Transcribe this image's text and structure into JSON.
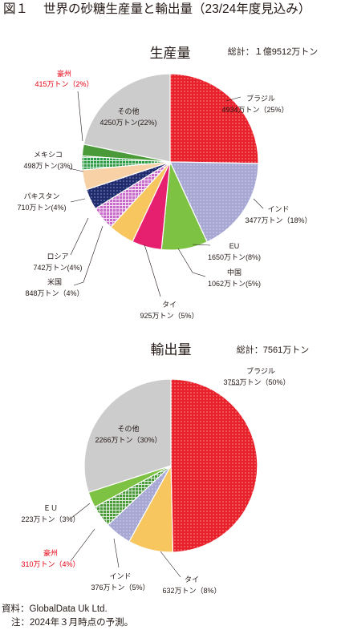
{
  "figure": {
    "number": "図１",
    "title": "世界の砂糖生産量と輸出量（23/24年度見込み）"
  },
  "chart_data": [
    {
      "type": "pie",
      "title": "生産量",
      "total": "総計：１億9512万トン",
      "unit": "万トン",
      "slices": [
        {
          "name": "ブラジル",
          "value": 4934,
          "percent": 25,
          "value_label": "4934万トン（25%）",
          "color": "#e8202a",
          "pattern": "dots-white"
        },
        {
          "name": "インド",
          "value": 3477,
          "percent": 18,
          "value_label": "3477万トン（18%）",
          "color": "#a7a7d4",
          "pattern": "dots-white"
        },
        {
          "name": "EU",
          "value": 1650,
          "percent": 8,
          "value_label": "1650万トン(8%)",
          "color": "#7dc242",
          "pattern": "none"
        },
        {
          "name": "中国",
          "value": 1062,
          "percent": 5,
          "value_label": "1062万トン(5%)",
          "color": "#e6206e",
          "pattern": "none"
        },
        {
          "name": "タイ",
          "value": 925,
          "percent": 5,
          "value_label": "925万トン（5%）",
          "color": "#f7c65f",
          "pattern": "none"
        },
        {
          "name": "米国",
          "value": 848,
          "percent": 4,
          "value_label": "848万トン（4%）",
          "color": "#c86ac9",
          "pattern": "grid-white"
        },
        {
          "name": "ロシア",
          "value": 742,
          "percent": 4,
          "value_label": "742万トン(4%)",
          "color": "#1e2b6e",
          "pattern": "dots-white"
        },
        {
          "name": "パキスタン",
          "value": 710,
          "percent": 4,
          "value_label": "710万トン(4%)",
          "color": "#f8d1a6",
          "pattern": "none"
        },
        {
          "name": "メキシコ",
          "value": 498,
          "percent": 3,
          "value_label": "498万トン(3%)",
          "color": "#2e9b46",
          "pattern": "grid-white"
        },
        {
          "name": "豪州",
          "value": 415,
          "percent": 2,
          "value_label": "415万トン（2%）",
          "color": "#4a9a3a",
          "pattern": "none",
          "highlight": true
        },
        {
          "name": "その他",
          "value": 4250,
          "percent": 22,
          "value_label": "4250万トン(22%)",
          "color": "#cccccc",
          "pattern": "none"
        }
      ]
    },
    {
      "type": "pie",
      "title": "輸出量",
      "total": "総計：7561万トン",
      "unit": "万トン",
      "slices": [
        {
          "name": "ブラジル",
          "value": 3753,
          "percent": 50,
          "value_label": "3753万トン（50%）",
          "color": "#e8202a",
          "pattern": "dots-white"
        },
        {
          "name": "タイ",
          "value": 632,
          "percent": 8,
          "value_label": "632万トン（8%）",
          "color": "#f7c65f",
          "pattern": "none"
        },
        {
          "name": "インド",
          "value": 376,
          "percent": 5,
          "value_label": "376万トン（5%）",
          "color": "#a7a7d4",
          "pattern": "dots-white"
        },
        {
          "name": "豪州",
          "value": 310,
          "percent": 4,
          "value_label": "310万トン（4%）",
          "color": "#4a9a3a",
          "pattern": "grid-white",
          "highlight": true
        },
        {
          "name": "ＥＵ",
          "value": 223,
          "percent": 3,
          "value_label": "223万トン（3%）",
          "color": "#7dc242",
          "pattern": "none"
        },
        {
          "name": "その他",
          "value": 2266,
          "percent": 30,
          "value_label": "2266万トン（30%）",
          "color": "#cccccc",
          "pattern": "none"
        }
      ]
    }
  ],
  "colors": {
    "highlight_label": "#e60012",
    "text": "#231815",
    "leader_line": "#231815"
  },
  "source": {
    "line1": "資料：GlobalData Uk Ltd.",
    "line2": "注：2024年３月時点の予測。"
  }
}
